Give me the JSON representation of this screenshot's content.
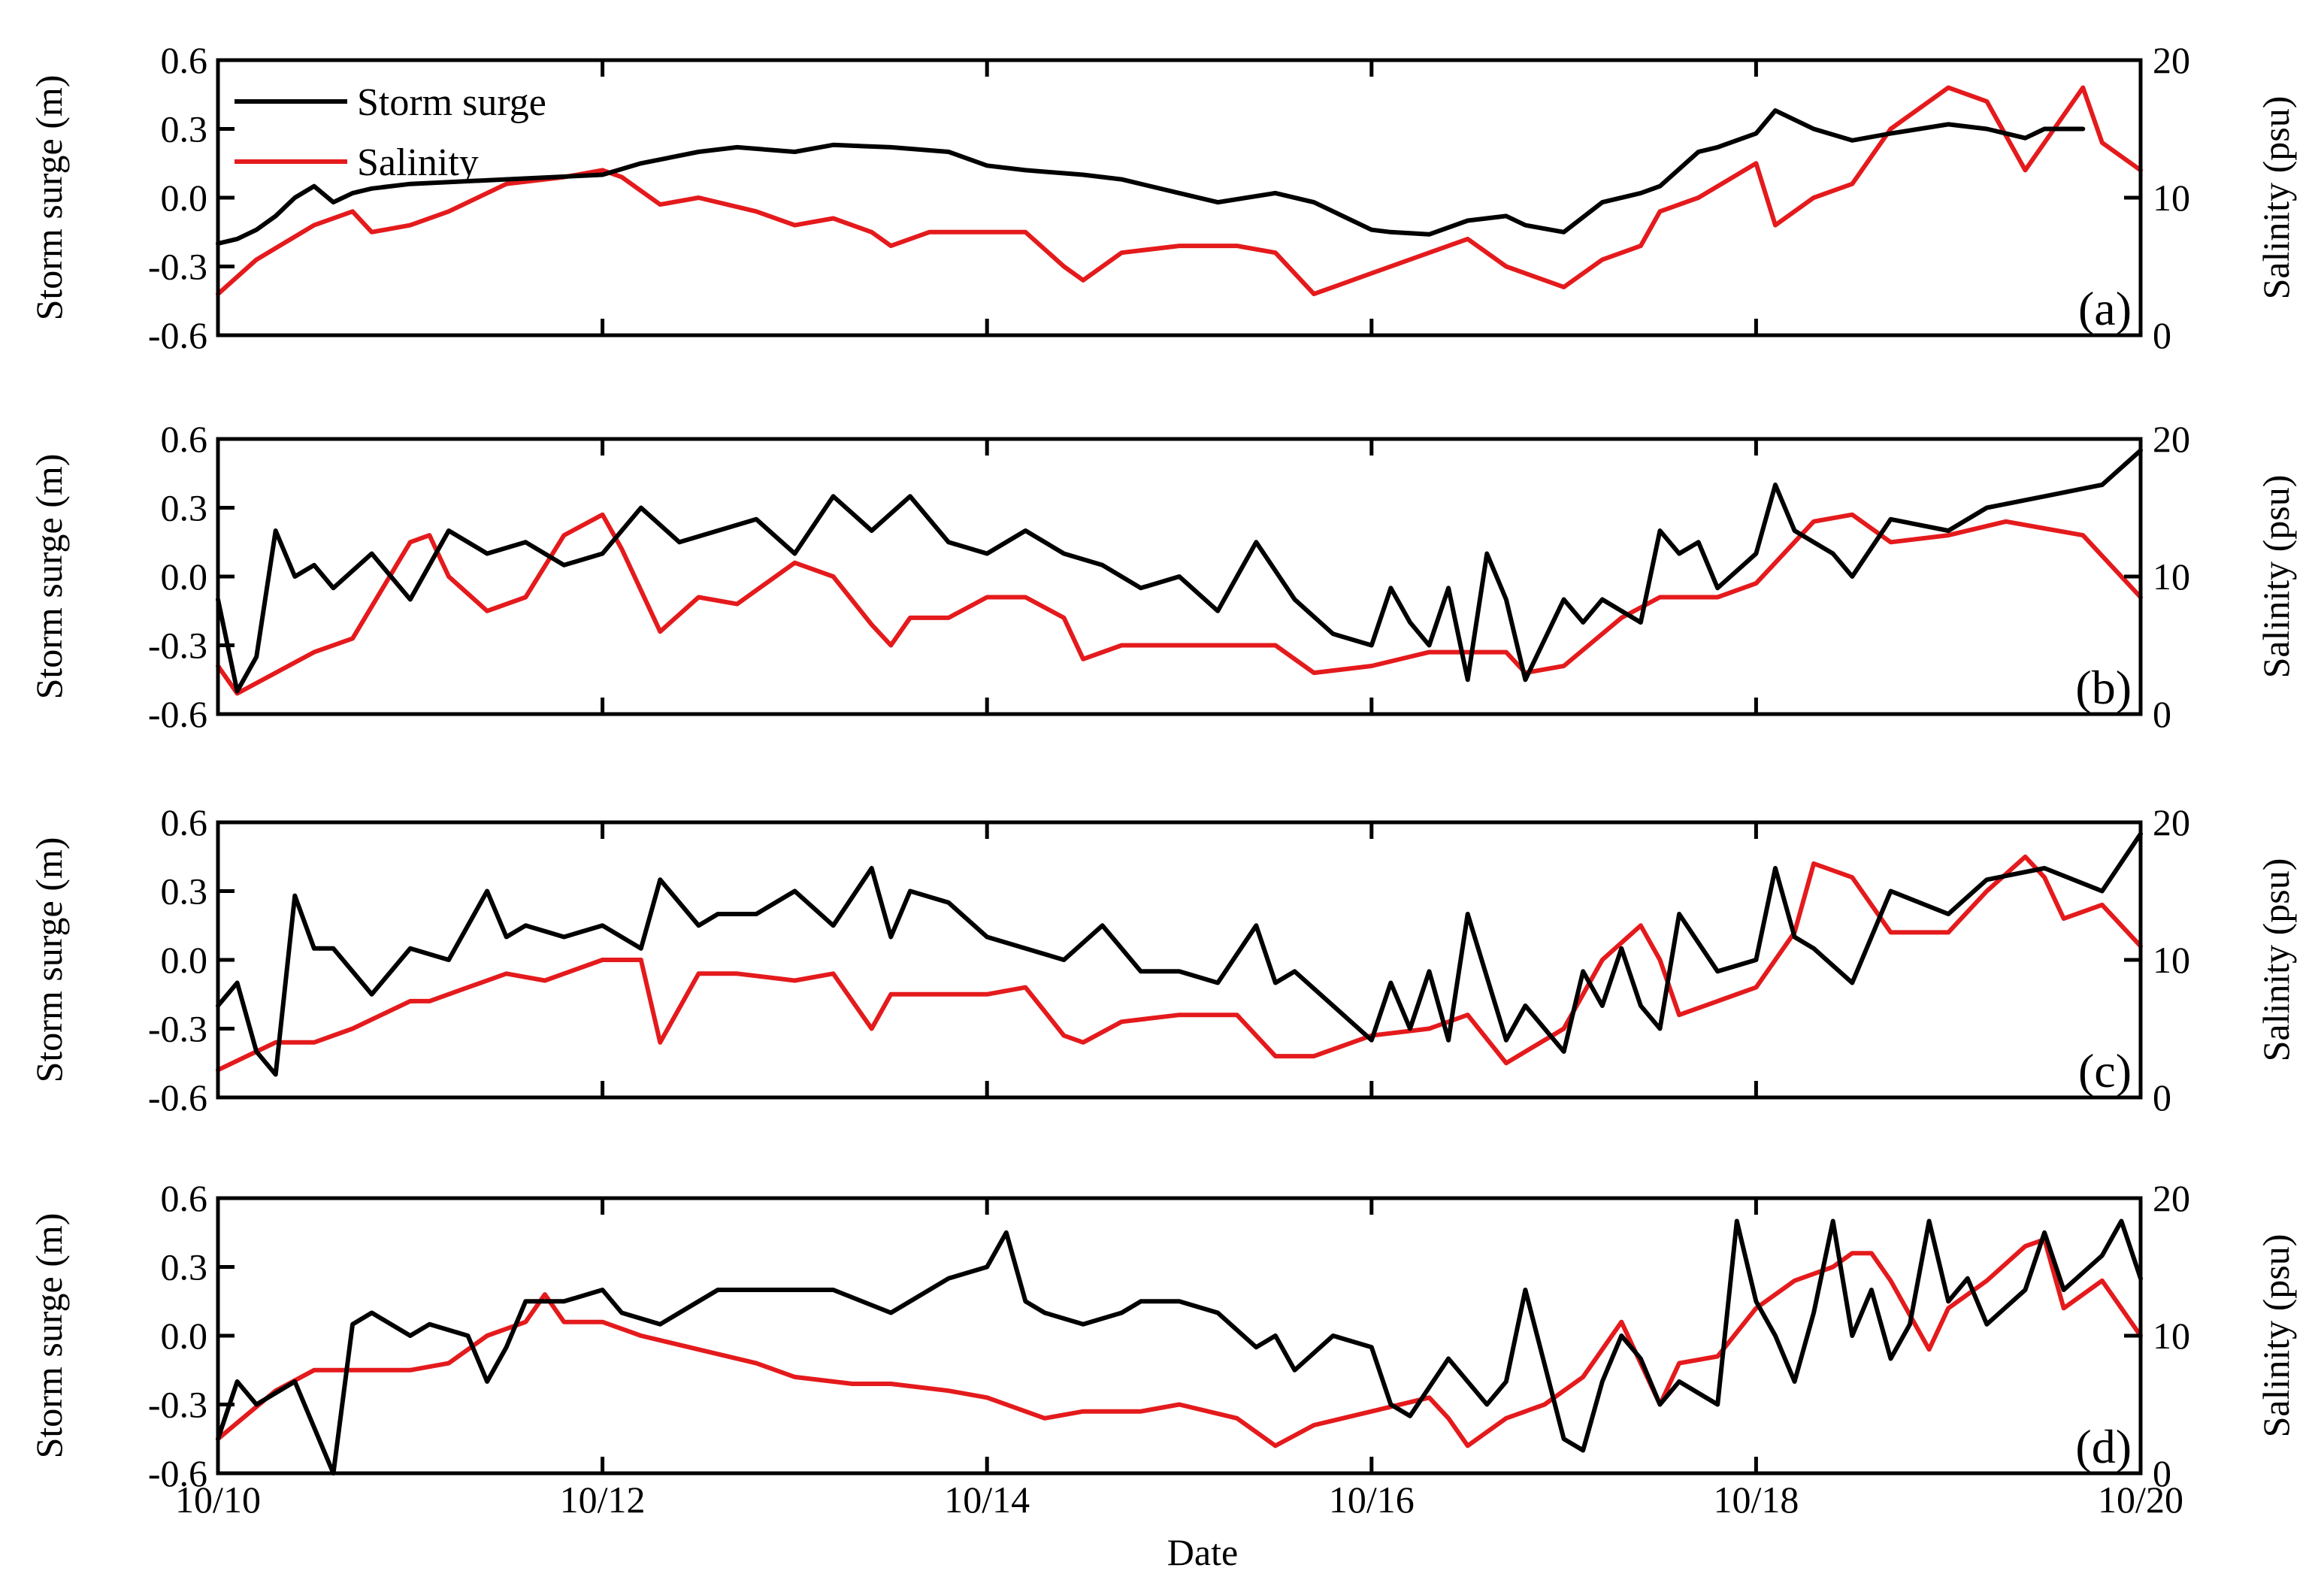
{
  "chart_data": {
    "type": "line",
    "x_label": "Date",
    "x_ticks": [
      "10/10",
      "10/12",
      "10/14",
      "10/16",
      "10/18",
      "10/20"
    ],
    "x_range_days": [
      0,
      10
    ],
    "left_axis": {
      "title": "Storm surge (m)",
      "ylim": [
        -0.6,
        0.6
      ],
      "ticks": [
        "0.6",
        "0.3",
        "0.0",
        "-0.3",
        "-0.6"
      ]
    },
    "right_axis": {
      "title": "Salinity (psu)",
      "ylim": [
        0,
        20
      ],
      "ticks": [
        "20",
        "10",
        "0"
      ]
    },
    "legend": [
      {
        "name": "Storm surge",
        "color": "#000000"
      },
      {
        "name": "Salinity",
        "color": "#e41a1c"
      }
    ],
    "panels": [
      {
        "label": "(a)",
        "storm_surge": {
          "x": [
            0,
            0.1,
            0.2,
            0.3,
            0.4,
            0.5,
            0.6,
            0.7,
            0.8,
            1.0,
            1.5,
            2.0,
            2.2,
            2.5,
            2.7,
            3.0,
            3.2,
            3.5,
            3.8,
            4.0,
            4.2,
            4.5,
            4.7,
            5.0,
            5.2,
            5.5,
            5.7,
            6.0,
            6.1,
            6.3,
            6.5,
            6.7,
            6.8,
            7.0,
            7.2,
            7.4,
            7.5,
            7.7,
            7.8,
            8.0,
            8.1,
            8.3,
            8.5,
            8.7,
            9.0,
            9.2,
            9.4,
            9.5,
            9.7
          ],
          "values": [
            -0.2,
            -0.18,
            -0.14,
            -0.08,
            0.0,
            0.05,
            -0.02,
            0.02,
            0.04,
            0.06,
            0.08,
            0.1,
            0.15,
            0.2,
            0.22,
            0.2,
            0.23,
            0.22,
            0.2,
            0.14,
            0.12,
            0.1,
            0.08,
            0.02,
            -0.02,
            0.02,
            -0.02,
            -0.14,
            -0.15,
            -0.16,
            -0.1,
            -0.08,
            -0.12,
            -0.15,
            -0.02,
            0.02,
            0.05,
            0.2,
            0.22,
            0.28,
            0.38,
            0.3,
            0.25,
            0.28,
            0.32,
            0.3,
            0.26,
            0.3,
            0.3
          ]
        },
        "salinity": {
          "x": [
            0,
            0.2,
            0.5,
            0.7,
            0.8,
            1.0,
            1.2,
            1.5,
            1.8,
            2.0,
            2.1,
            2.3,
            2.5,
            2.8,
            3.0,
            3.2,
            3.4,
            3.5,
            3.7,
            4.0,
            4.2,
            4.4,
            4.5,
            4.7,
            5.0,
            5.3,
            5.5,
            5.7,
            6.0,
            6.3,
            6.4,
            6.5,
            6.7,
            7.0,
            7.2,
            7.4,
            7.5,
            7.7,
            8.0,
            8.1,
            8.3,
            8.4,
            8.5,
            8.7,
            9.0,
            9.2,
            9.4,
            9.5,
            9.6,
            9.7,
            9.8,
            10.0
          ],
          "values": [
            3,
            5.5,
            8,
            9,
            7.5,
            8,
            9,
            11,
            11.5,
            12,
            11.5,
            9.5,
            10,
            9,
            8,
            8.5,
            7.5,
            6.5,
            7.5,
            7.5,
            7.5,
            5,
            4,
            6,
            6.5,
            6.5,
            6,
            3,
            4.5,
            6,
            6.5,
            7,
            5,
            3.5,
            5.5,
            6.5,
            9,
            10,
            12.5,
            8,
            10,
            10.5,
            11,
            15,
            18,
            17,
            12,
            14,
            16,
            18,
            14,
            12
          ]
        }
      },
      {
        "label": "(b)",
        "storm_surge": {
          "x": [
            0,
            0.1,
            0.2,
            0.3,
            0.4,
            0.5,
            0.6,
            0.8,
            1.0,
            1.2,
            1.4,
            1.6,
            1.8,
            2.0,
            2.2,
            2.4,
            2.6,
            2.8,
            3.0,
            3.2,
            3.4,
            3.6,
            3.8,
            4.0,
            4.2,
            4.4,
            4.6,
            4.8,
            5.0,
            5.2,
            5.4,
            5.6,
            5.8,
            6.0,
            6.1,
            6.2,
            6.3,
            6.4,
            6.5,
            6.6,
            6.7,
            6.8,
            7.0,
            7.1,
            7.2,
            7.4,
            7.5,
            7.6,
            7.7,
            7.8,
            8.0,
            8.1,
            8.2,
            8.3,
            8.4,
            8.5,
            8.7,
            9.0,
            9.2,
            9.5,
            9.8,
            10.0
          ],
          "values": [
            -0.1,
            -0.5,
            -0.35,
            0.2,
            0.0,
            0.05,
            -0.05,
            0.1,
            -0.1,
            0.2,
            0.1,
            0.15,
            0.05,
            0.1,
            0.3,
            0.15,
            0.2,
            0.25,
            0.1,
            0.35,
            0.2,
            0.35,
            0.15,
            0.1,
            0.2,
            0.1,
            0.05,
            -0.05,
            0.0,
            -0.15,
            0.15,
            -0.1,
            -0.25,
            -0.3,
            -0.05,
            -0.2,
            -0.3,
            -0.05,
            -0.45,
            0.1,
            -0.1,
            -0.45,
            -0.1,
            -0.2,
            -0.1,
            -0.2,
            0.2,
            0.1,
            0.15,
            -0.05,
            0.1,
            0.4,
            0.2,
            0.15,
            0.1,
            0.0,
            0.25,
            0.2,
            0.3,
            0.35,
            0.4,
            0.55
          ]
        },
        "salinity": {
          "x": [
            0,
            0.1,
            0.3,
            0.5,
            0.7,
            1.0,
            1.1,
            1.2,
            1.4,
            1.6,
            1.8,
            2.0,
            2.1,
            2.3,
            2.5,
            2.7,
            3.0,
            3.2,
            3.4,
            3.5,
            3.6,
            3.8,
            4.0,
            4.2,
            4.4,
            4.5,
            4.7,
            5.0,
            5.2,
            5.5,
            5.7,
            6.0,
            6.3,
            6.5,
            6.7,
            6.8,
            7.0,
            7.3,
            7.5,
            7.8,
            8.0,
            8.3,
            8.5,
            8.7,
            9.0,
            9.3,
            9.5,
            9.7,
            10.0
          ],
          "values": [
            3.5,
            1.5,
            3,
            4.5,
            5.5,
            12.5,
            13,
            10,
            7.5,
            8.5,
            13,
            14.5,
            12,
            6,
            8.5,
            8,
            11,
            10,
            6.5,
            5,
            7,
            7,
            8.5,
            8.5,
            7,
            4,
            5,
            5,
            5,
            5,
            3,
            3.5,
            4.5,
            4.5,
            4.5,
            3,
            3.5,
            7,
            8.5,
            8.5,
            9.5,
            14,
            14.5,
            12.5,
            13,
            14,
            13.5,
            13,
            8.5
          ]
        }
      },
      {
        "label": "(c)",
        "storm_surge": {
          "x": [
            0,
            0.1,
            0.2,
            0.3,
            0.4,
            0.5,
            0.6,
            0.8,
            1.0,
            1.2,
            1.4,
            1.5,
            1.6,
            1.8,
            2.0,
            2.2,
            2.3,
            2.5,
            2.6,
            2.8,
            3.0,
            3.2,
            3.4,
            3.5,
            3.6,
            3.8,
            4.0,
            4.2,
            4.4,
            4.6,
            4.8,
            5.0,
            5.2,
            5.4,
            5.5,
            5.6,
            5.8,
            6.0,
            6.1,
            6.2,
            6.3,
            6.4,
            6.5,
            6.7,
            6.8,
            7.0,
            7.1,
            7.2,
            7.3,
            7.4,
            7.5,
            7.6,
            7.8,
            8.0,
            8.1,
            8.2,
            8.3,
            8.5,
            8.7,
            9.0,
            9.2,
            9.5,
            9.8,
            10.0
          ],
          "values": [
            -0.2,
            -0.1,
            -0.4,
            -0.5,
            0.28,
            0.05,
            0.05,
            -0.15,
            0.05,
            0.0,
            0.3,
            0.1,
            0.15,
            0.1,
            0.15,
            0.05,
            0.35,
            0.15,
            0.2,
            0.2,
            0.3,
            0.15,
            0.4,
            0.1,
            0.3,
            0.25,
            0.1,
            0.05,
            0.0,
            0.15,
            -0.05,
            -0.05,
            -0.1,
            0.15,
            -0.1,
            -0.05,
            -0.2,
            -0.35,
            -0.1,
            -0.3,
            -0.05,
            -0.35,
            0.2,
            -0.35,
            -0.2,
            -0.4,
            -0.05,
            -0.2,
            0.05,
            -0.2,
            -0.3,
            0.2,
            -0.05,
            0.0,
            0.4,
            0.1,
            0.05,
            -0.1,
            0.3,
            0.2,
            0.35,
            0.4,
            0.3,
            0.55
          ]
        },
        "salinity": {
          "x": [
            0,
            0.3,
            0.5,
            0.7,
            1.0,
            1.1,
            1.3,
            1.5,
            1.7,
            2.0,
            2.2,
            2.3,
            2.5,
            2.7,
            3.0,
            3.2,
            3.4,
            3.5,
            3.7,
            4.0,
            4.2,
            4.4,
            4.5,
            4.7,
            5.0,
            5.3,
            5.5,
            5.7,
            6.0,
            6.3,
            6.5,
            6.7,
            7.0,
            7.2,
            7.4,
            7.5,
            7.6,
            7.8,
            8.0,
            8.2,
            8.3,
            8.5,
            8.7,
            9.0,
            9.2,
            9.4,
            9.5,
            9.6,
            9.8,
            10.0
          ],
          "values": [
            2,
            4,
            4,
            5,
            7,
            7,
            8,
            9,
            8.5,
            10,
            10,
            4,
            9,
            9,
            8.5,
            9,
            5,
            7.5,
            7.5,
            7.5,
            8,
            4.5,
            4,
            5.5,
            6,
            6,
            3,
            3,
            4.5,
            5,
            6,
            2.5,
            5,
            10,
            12.5,
            10,
            6,
            7,
            8,
            12,
            17,
            16,
            12,
            12,
            15,
            17.5,
            16,
            13,
            14,
            11
          ]
        }
      },
      {
        "label": "(d)",
        "storm_surge": {
          "x": [
            0,
            0.1,
            0.2,
            0.4,
            0.5,
            0.6,
            0.7,
            0.8,
            1.0,
            1.1,
            1.3,
            1.4,
            1.5,
            1.6,
            1.8,
            2.0,
            2.1,
            2.3,
            2.4,
            2.6,
            2.8,
            3.0,
            3.2,
            3.5,
            3.8,
            4.0,
            4.1,
            4.2,
            4.3,
            4.5,
            4.7,
            4.8,
            5.0,
            5.2,
            5.4,
            5.5,
            5.6,
            5.8,
            6.0,
            6.1,
            6.2,
            6.4,
            6.5,
            6.6,
            6.7,
            6.8,
            7.0,
            7.1,
            7.2,
            7.3,
            7.4,
            7.5,
            7.6,
            7.8,
            7.9,
            8.0,
            8.1,
            8.2,
            8.3,
            8.4,
            8.5,
            8.6,
            8.7,
            8.8,
            8.9,
            9.0,
            9.1,
            9.2,
            9.4,
            9.5,
            9.6,
            9.8,
            9.9,
            10.0
          ],
          "values": [
            -0.45,
            -0.2,
            -0.3,
            -0.2,
            -0.4,
            -0.6,
            0.05,
            0.1,
            0.0,
            0.05,
            0.0,
            -0.2,
            -0.05,
            0.15,
            0.15,
            0.2,
            0.1,
            0.05,
            0.1,
            0.2,
            0.2,
            0.2,
            0.2,
            0.1,
            0.25,
            0.3,
            0.45,
            0.15,
            0.1,
            0.05,
            0.1,
            0.15,
            0.15,
            0.1,
            -0.05,
            0.0,
            -0.15,
            0.0,
            -0.05,
            -0.3,
            -0.35,
            -0.1,
            -0.2,
            -0.3,
            -0.2,
            0.2,
            -0.45,
            -0.5,
            -0.2,
            0.0,
            -0.1,
            -0.3,
            -0.2,
            -0.3,
            0.5,
            0.15,
            0.0,
            -0.2,
            0.1,
            0.5,
            0.0,
            0.2,
            -0.1,
            0.05,
            0.5,
            0.15,
            0.25,
            0.05,
            0.2,
            0.45,
            0.2,
            0.35,
            0.5,
            0.25
          ]
        },
        "salinity": {
          "x": [
            0,
            0.3,
            0.5,
            0.8,
            1.0,
            1.2,
            1.4,
            1.6,
            1.7,
            1.8,
            2.0,
            2.2,
            2.5,
            2.8,
            3.0,
            3.3,
            3.5,
            3.8,
            4.0,
            4.3,
            4.5,
            4.8,
            5.0,
            5.3,
            5.5,
            5.7,
            6.0,
            6.3,
            6.4,
            6.5,
            6.7,
            6.9,
            7.0,
            7.1,
            7.3,
            7.5,
            7.6,
            7.8,
            8.0,
            8.2,
            8.4,
            8.5,
            8.6,
            8.7,
            8.9,
            9.0,
            9.2,
            9.4,
            9.5,
            9.6,
            9.8,
            10.0
          ],
          "values": [
            2.5,
            6,
            7.5,
            7.5,
            7.5,
            8,
            10,
            11,
            13,
            11,
            11,
            10,
            9,
            8,
            7,
            6.5,
            6.5,
            6,
            5.5,
            4,
            4.5,
            4.5,
            5,
            4,
            2,
            3.5,
            4.5,
            5.5,
            4,
            2,
            4,
            5,
            6,
            7,
            11,
            5,
            8,
            8.5,
            12,
            14,
            15,
            16,
            16,
            14,
            9,
            12,
            14,
            16.5,
            17,
            12,
            14,
            10
          ]
        }
      }
    ]
  }
}
